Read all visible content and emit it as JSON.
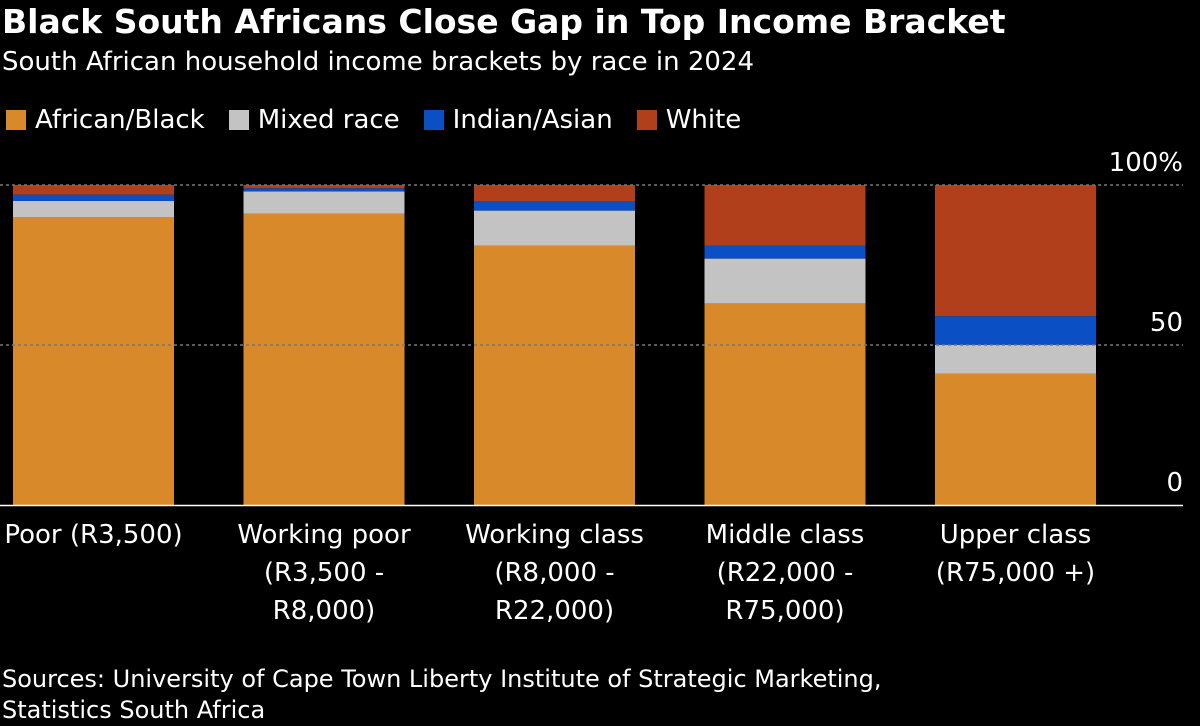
{
  "title": "Black South Africans Close Gap in Top Income Bracket",
  "subtitle": "South African household income brackets by race in 2024",
  "source": {
    "line1": "Sources: University of Cape Town Liberty Institute of Strategic Marketing,",
    "line2": "Statistics South Africa"
  },
  "colors": {
    "background": "#000000",
    "text": "#ffffff",
    "gridline": "#777777"
  },
  "chart_data": {
    "type": "bar",
    "stacked": true,
    "categories": [
      [
        "Poor (R3,500)"
      ],
      [
        "Working poor",
        "(R3,500 -",
        "R8,000)"
      ],
      [
        "Working class",
        "(R8,000 -",
        "R22,000)"
      ],
      [
        "Middle class",
        "(R22,000 -",
        "R75,000)"
      ],
      [
        "Upper class",
        "(R75,000 +)"
      ]
    ],
    "series": [
      {
        "name": "African/Black",
        "color": "#d8892a",
        "values": [
          90,
          91,
          81,
          63,
          41
        ]
      },
      {
        "name": "Mixed race",
        "color": "#c3c3c3",
        "values": [
          5,
          7,
          11,
          14,
          9
        ]
      },
      {
        "name": "Indian/Asian",
        "color": "#0b4fc4",
        "values": [
          2,
          1,
          3,
          4,
          9
        ]
      },
      {
        "name": "White",
        "color": "#b13f1c",
        "values": [
          3,
          1,
          5,
          19,
          41
        ]
      }
    ],
    "ylim": [
      0,
      100
    ],
    "yticks": [
      {
        "value": 0,
        "label": "0"
      },
      {
        "value": 50,
        "label": "50"
      },
      {
        "value": 100,
        "label": "100%"
      }
    ],
    "gridlines": [
      50,
      100
    ],
    "legend_position": "top-left",
    "xlabel": "",
    "ylabel": ""
  }
}
